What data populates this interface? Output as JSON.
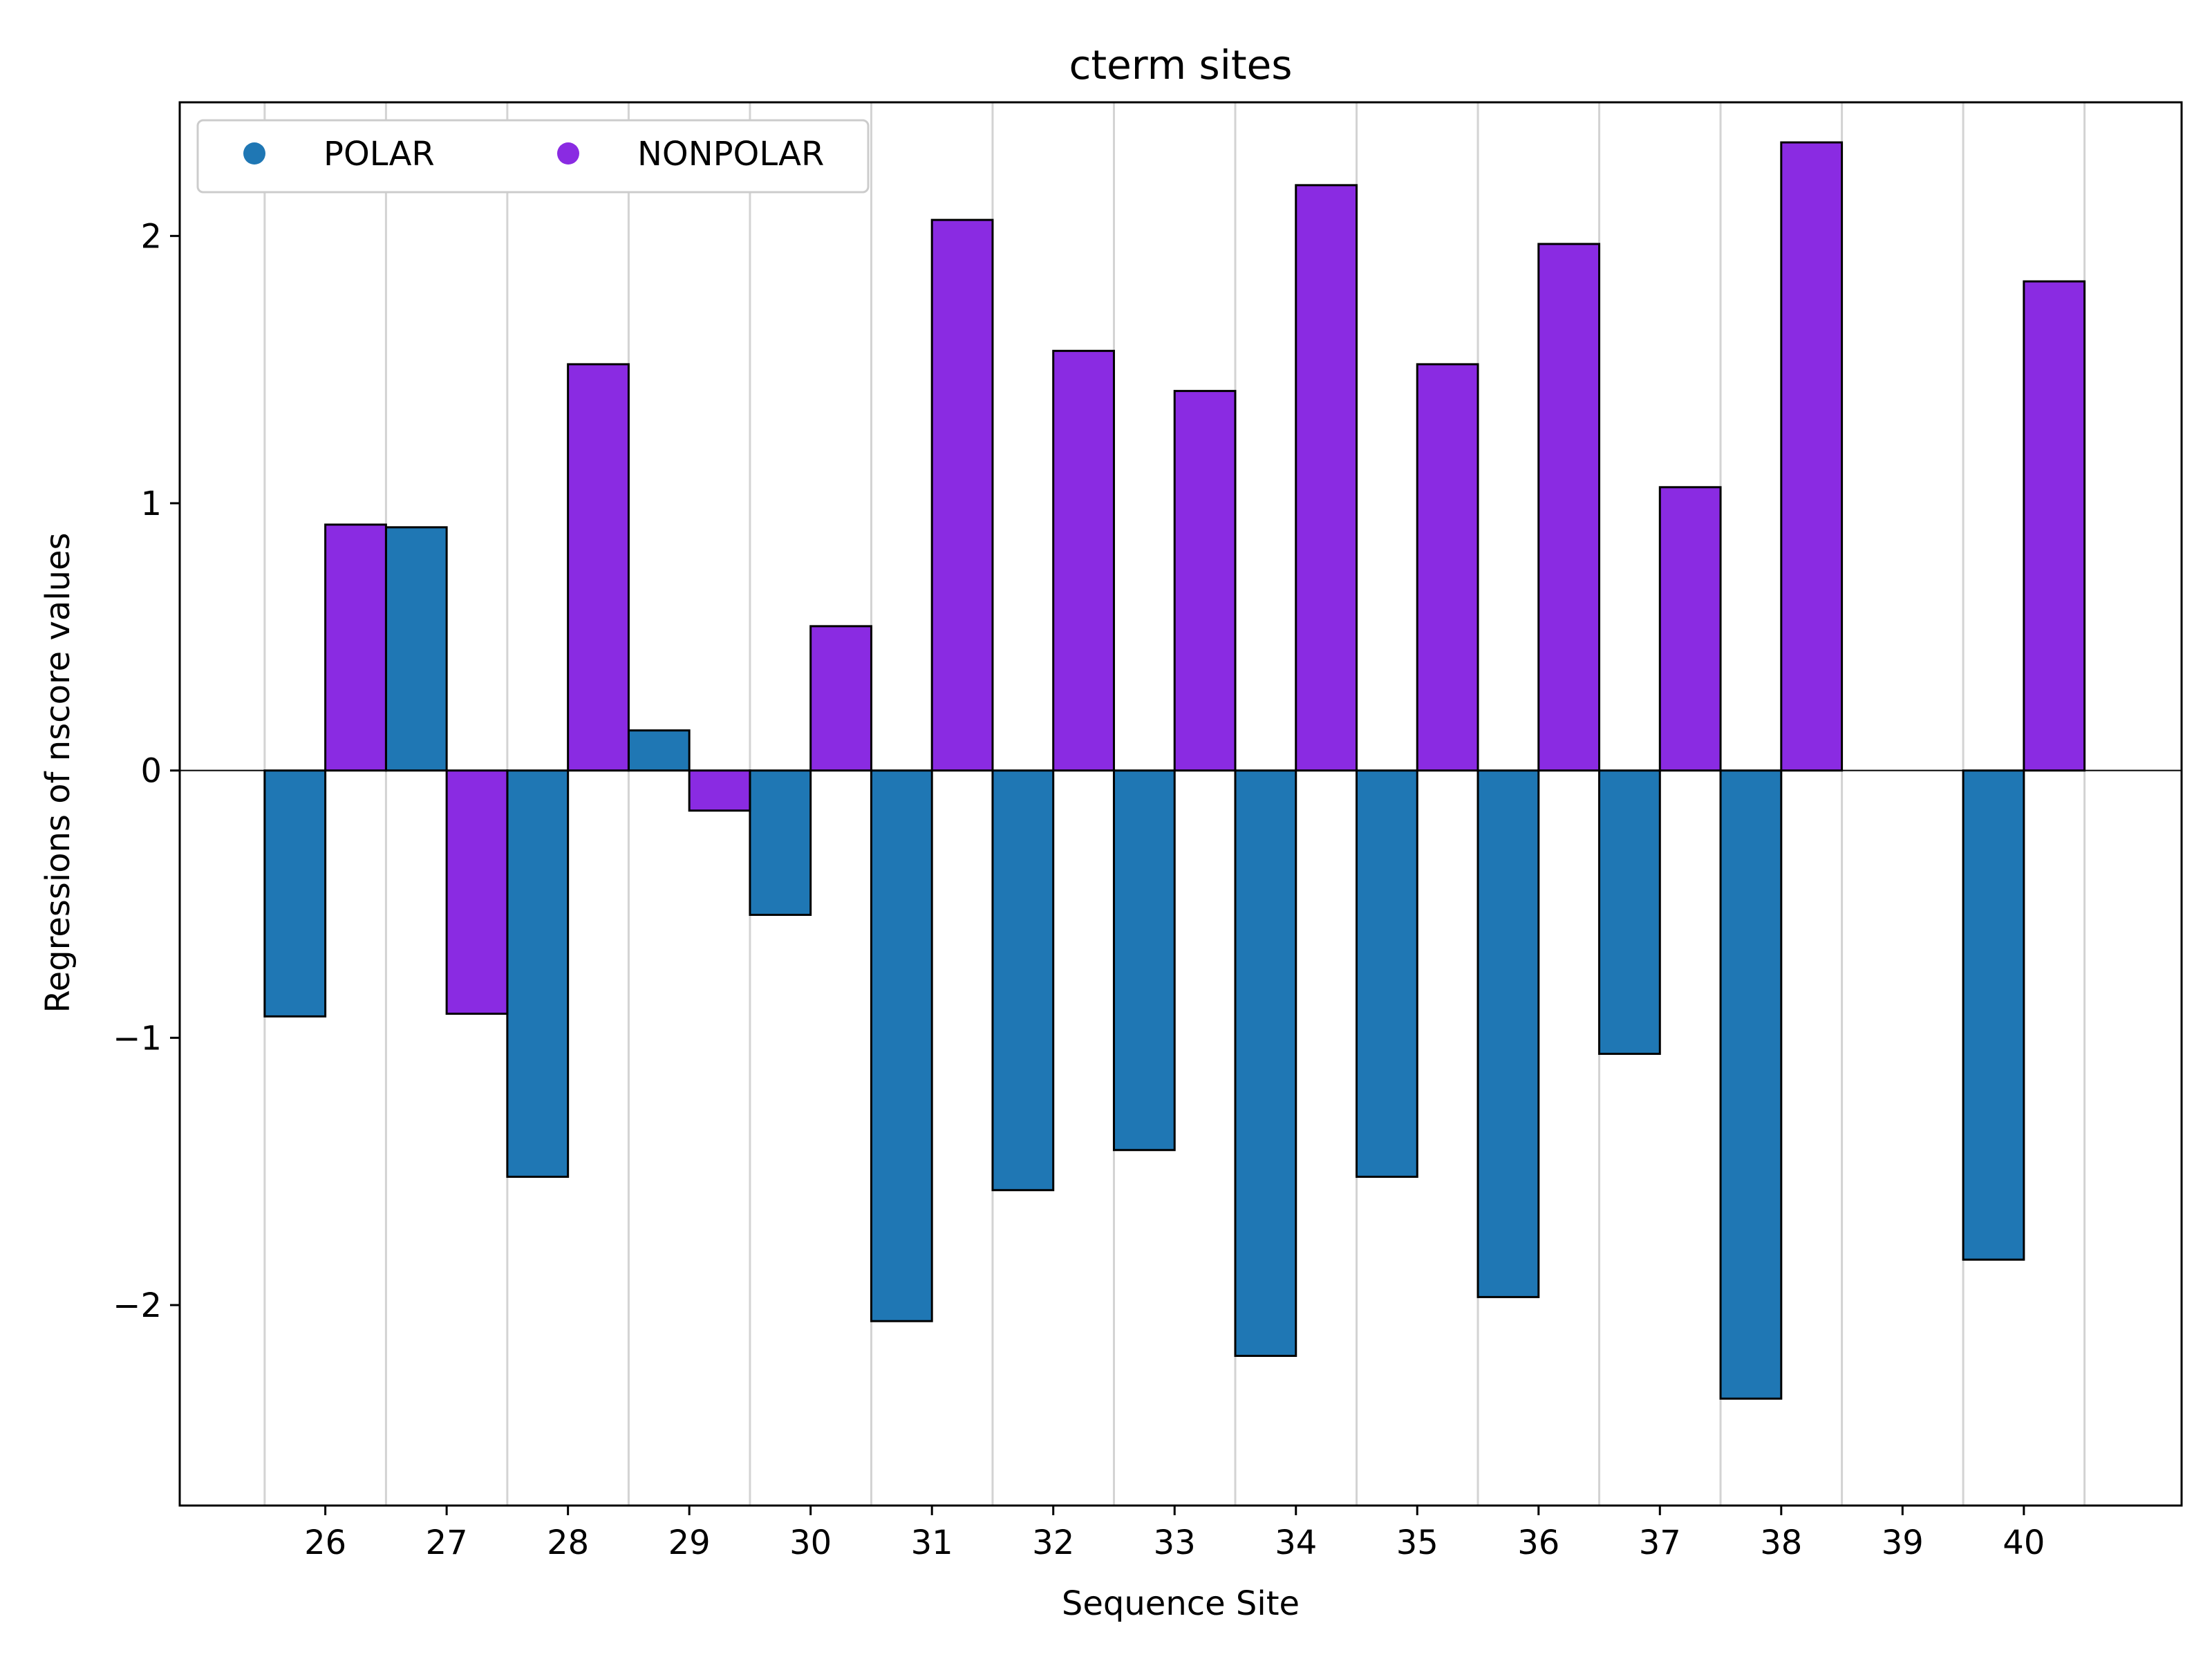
{
  "chart_data": {
    "type": "bar",
    "title": "cterm sites",
    "xlabel": "Sequence Site",
    "ylabel": "Regressions of nscore values",
    "categories": [
      "26",
      "27",
      "28",
      "29",
      "30",
      "31",
      "32",
      "33",
      "34",
      "35",
      "36",
      "37",
      "38",
      "39",
      "40"
    ],
    "series": [
      {
        "name": "POLAR",
        "color": "#1f77b4",
        "values": [
          -0.92,
          0.91,
          -1.52,
          0.15,
          -0.54,
          -2.06,
          -1.57,
          -1.42,
          -2.19,
          -1.52,
          -1.97,
          -1.06,
          -2.35,
          null,
          -1.83
        ]
      },
      {
        "name": "NONPOLAR",
        "color": "#8a2be2",
        "values": [
          0.92,
          -0.91,
          1.52,
          -0.15,
          0.54,
          2.06,
          1.57,
          1.42,
          2.19,
          1.52,
          1.97,
          1.06,
          2.35,
          null,
          1.83
        ]
      }
    ],
    "ylim": [
      -2.75,
      2.5
    ],
    "yticks": [
      -2,
      -1,
      0,
      1,
      2
    ],
    "ytick_labels": [
      "−2",
      "−1",
      "0",
      "1",
      "2"
    ],
    "xlim": [
      24.8,
      41.3
    ],
    "grid": "vertical",
    "zero_line": true,
    "legend": {
      "placement": "top-left",
      "marker": "circle",
      "columns": 2
    }
  }
}
